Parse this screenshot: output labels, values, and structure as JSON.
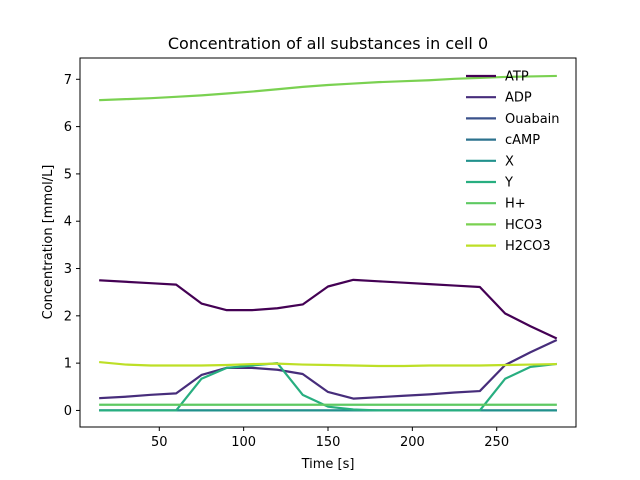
{
  "chart_data": {
    "type": "line",
    "title": "Concentration of all substances in cell 0",
    "xlabel": "Time [s]",
    "ylabel": "Concentration [mmol/L]",
    "xlim": [
      3,
      297
    ],
    "ylim": [
      -0.35,
      7.45
    ],
    "xticks": [
      50,
      100,
      150,
      200,
      250
    ],
    "yticks": [
      0,
      1,
      2,
      3,
      4,
      5,
      6,
      7
    ],
    "grid": false,
    "legend_position": "top-right",
    "x": [
      15,
      30,
      45,
      60,
      75,
      90,
      105,
      120,
      135,
      150,
      165,
      180,
      195,
      210,
      225,
      240,
      255,
      270,
      285
    ],
    "series": [
      {
        "name": "ATP",
        "color": "#440154",
        "values": [
          2.75,
          2.72,
          2.69,
          2.66,
          2.26,
          2.12,
          2.12,
          2.16,
          2.24,
          2.62,
          2.76,
          2.73,
          2.7,
          2.67,
          2.64,
          2.61,
          2.05,
          1.78,
          1.53
        ]
      },
      {
        "name": "ADP",
        "color": "#472d7b",
        "values": [
          0.26,
          0.29,
          0.33,
          0.36,
          0.75,
          0.9,
          0.9,
          0.86,
          0.77,
          0.39,
          0.25,
          0.28,
          0.31,
          0.34,
          0.38,
          0.41,
          0.96,
          1.23,
          1.48
        ]
      },
      {
        "name": "Ouabain",
        "color": "#3b528b",
        "values": [
          0,
          0,
          0,
          0,
          0,
          0,
          0,
          0,
          0,
          0,
          0,
          0,
          0,
          0,
          0,
          0,
          0,
          0,
          0
        ]
      },
      {
        "name": "cAMP",
        "color": "#2c728e",
        "values": [
          0,
          0,
          0,
          0,
          0,
          0,
          0,
          0,
          0,
          0,
          0,
          0,
          0,
          0,
          0,
          0,
          0,
          0,
          0
        ]
      },
      {
        "name": "X",
        "color": "#21918c",
        "values": [
          0,
          0,
          0,
          0,
          0,
          0,
          0,
          0,
          0,
          0,
          0,
          0,
          0,
          0,
          0,
          0,
          0,
          0,
          0
        ]
      },
      {
        "name": "Y",
        "color": "#28ae80",
        "values": [
          0,
          0,
          0,
          0,
          0.67,
          0.9,
          0.95,
          1.0,
          0.33,
          0.08,
          0.02,
          0,
          0,
          0,
          0,
          0,
          0.67,
          0.92,
          0.98
        ]
      },
      {
        "name": "H+",
        "color": "#5ec962",
        "values": [
          0.12,
          0.12,
          0.12,
          0.12,
          0.12,
          0.12,
          0.12,
          0.12,
          0.12,
          0.12,
          0.12,
          0.12,
          0.12,
          0.12,
          0.12,
          0.12,
          0.12,
          0.12,
          0.12
        ]
      },
      {
        "name": "HCO3",
        "color": "#7ad151",
        "values": [
          6.56,
          6.58,
          6.6,
          6.63,
          6.66,
          6.7,
          6.74,
          6.79,
          6.84,
          6.88,
          6.91,
          6.94,
          6.96,
          6.98,
          7.01,
          7.03,
          7.05,
          7.06,
          7.07
        ]
      },
      {
        "name": "H2CO3",
        "color": "#bddf26",
        "values": [
          1.02,
          0.97,
          0.95,
          0.95,
          0.95,
          0.96,
          0.98,
          0.99,
          0.97,
          0.96,
          0.95,
          0.94,
          0.94,
          0.95,
          0.95,
          0.95,
          0.96,
          0.97,
          0.98
        ]
      }
    ]
  }
}
